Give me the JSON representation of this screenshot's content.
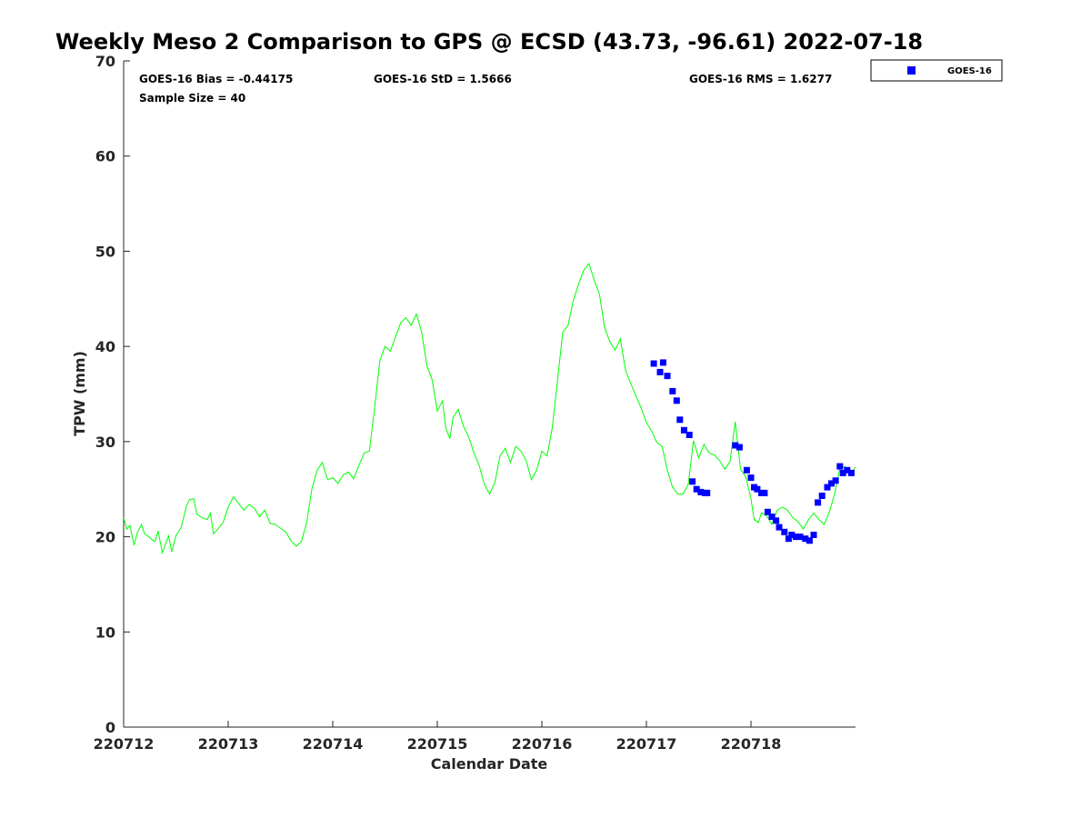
{
  "chart_data": {
    "type": "line",
    "title": "Weekly Meso 2 Comparison to GPS @ ECSD (43.73, -96.61) 2022-07-18",
    "xlabel": "Calendar Date",
    "ylabel": "TPW (mm)",
    "xlim": [
      0,
      7
    ],
    "ylim": [
      0,
      70
    ],
    "x_ticks": [
      0,
      1,
      2,
      3,
      4,
      5,
      6
    ],
    "x_tick_labels": [
      "220712",
      "220713",
      "220714",
      "220715",
      "220716",
      "220717",
      "220718"
    ],
    "y_ticks": [
      0,
      10,
      20,
      30,
      40,
      50,
      60,
      70
    ],
    "y_tick_labels": [
      "0",
      "10",
      "20",
      "30",
      "40",
      "50",
      "60",
      "70"
    ],
    "grid": false,
    "legend_position": "top-right (outside axes)",
    "stats": {
      "bias": "GOES-16 Bias = -0.44175",
      "std": "GOES-16 StD = 1.5666",
      "rms": "GOES-16 RMS = 1.6277",
      "sample": "Sample Size = 40"
    },
    "legend": [
      {
        "label": "GOES-16",
        "marker": "square",
        "color": "#0000ff"
      }
    ],
    "colors": {
      "gps_line": "#00ff00",
      "goes_marker": "#0000ff",
      "axes": "#262626"
    },
    "series": [
      {
        "kind": "line",
        "x": [
          0.0,
          0.03,
          0.06,
          0.1,
          0.13,
          0.17,
          0.2,
          0.23,
          0.27,
          0.3,
          0.33,
          0.37,
          0.4,
          0.43,
          0.46,
          0.5,
          0.55,
          0.6,
          0.63,
          0.67,
          0.7,
          0.75,
          0.8,
          0.83,
          0.86,
          0.9,
          0.95,
          1.0,
          1.05,
          1.1,
          1.15,
          1.2,
          1.25,
          1.3,
          1.35,
          1.4,
          1.45,
          1.5,
          1.55,
          1.6,
          1.65,
          1.7,
          1.75,
          1.8,
          1.85,
          1.9,
          1.95,
          2.0,
          2.05,
          2.1,
          2.15,
          2.2,
          2.25,
          2.3,
          2.35,
          2.4,
          2.45,
          2.5,
          2.55,
          2.6,
          2.65,
          2.7,
          2.75,
          2.8,
          2.85,
          2.9,
          2.95,
          3.0,
          3.05,
          3.08,
          3.12,
          3.15,
          3.2,
          3.25,
          3.3,
          3.35,
          3.4,
          3.45,
          3.5,
          3.55,
          3.6,
          3.65,
          3.7,
          3.75,
          3.8,
          3.85,
          3.9,
          3.95,
          4.0,
          4.05,
          4.1,
          4.15,
          4.2,
          4.25,
          4.3,
          4.35,
          4.4,
          4.45,
          4.5,
          4.55,
          4.6,
          4.65,
          4.7,
          4.75,
          4.8,
          4.85,
          4.9,
          4.95,
          5.0,
          5.05,
          5.1,
          5.15,
          5.2,
          5.25,
          5.3,
          5.35,
          5.4,
          5.45,
          5.5,
          5.55,
          5.6,
          5.65,
          5.7,
          5.75,
          5.8,
          5.85,
          5.9,
          5.95,
          6.0,
          6.03,
          6.07,
          6.1,
          6.15,
          6.2,
          6.25,
          6.3,
          6.35,
          6.4,
          6.45,
          6.5,
          6.55,
          6.6,
          6.65,
          6.7,
          6.75,
          6.8,
          6.85,
          6.9,
          6.95,
          7.0
        ],
        "y": [
          22.0,
          20.8,
          21.2,
          19.1,
          20.4,
          21.3,
          20.3,
          20.1,
          19.7,
          19.5,
          20.6,
          18.3,
          19.2,
          20.1,
          18.4,
          20.1,
          21.0,
          23.2,
          23.9,
          24.0,
          22.4,
          22.0,
          21.8,
          22.5,
          20.3,
          20.8,
          21.5,
          23.1,
          24.2,
          23.5,
          22.8,
          23.4,
          23.0,
          22.1,
          22.8,
          21.4,
          21.3,
          20.9,
          20.5,
          19.6,
          19.0,
          19.5,
          21.5,
          25.0,
          27.0,
          27.8,
          26.0,
          26.2,
          25.6,
          26.5,
          26.8,
          26.1,
          27.5,
          28.8,
          29.0,
          33.5,
          38.5,
          40.0,
          39.5,
          41.0,
          42.5,
          43.0,
          42.2,
          43.4,
          41.5,
          38.0,
          36.5,
          33.2,
          34.3,
          31.5,
          30.3,
          32.5,
          33.4,
          31.6,
          30.5,
          28.8,
          27.5,
          25.5,
          24.5,
          25.7,
          28.5,
          29.3,
          27.8,
          29.5,
          29.0,
          28.0,
          26.0,
          27.0,
          29.0,
          28.5,
          31.5,
          36.5,
          41.5,
          42.2,
          44.8,
          46.5,
          48.0,
          48.7,
          47.0,
          45.5,
          42.0,
          40.5,
          39.6,
          40.8,
          37.5,
          36.1,
          34.8,
          33.5,
          32.0,
          31.1,
          29.9,
          29.5,
          27.0,
          25.2,
          24.5,
          24.5,
          25.5,
          30.1,
          28.3,
          29.7,
          28.8,
          28.6,
          28.0,
          27.1,
          27.9,
          32.1,
          27.1,
          26.3,
          24.0,
          21.8,
          21.5,
          22.5,
          22.2,
          21.3,
          22.8,
          23.1,
          22.8,
          22.0,
          21.6,
          20.8,
          21.8,
          22.5,
          21.8,
          21.3,
          22.6,
          24.5,
          27.2,
          27.4,
          26.6,
          27.3
        ]
      },
      {
        "name": "GOES-16",
        "kind": "marker",
        "x": [
          5.07,
          5.13,
          5.16,
          5.2,
          5.25,
          5.29,
          5.32,
          5.36,
          5.41,
          5.44,
          5.48,
          5.52,
          5.56,
          5.58,
          5.85,
          5.89,
          5.96,
          6.0,
          6.03,
          6.06,
          6.1,
          6.13,
          6.16,
          6.2,
          6.24,
          6.27,
          6.32,
          6.36,
          6.39,
          6.43,
          6.47,
          6.52,
          6.56,
          6.6,
          6.64,
          6.68,
          6.73,
          6.77,
          6.81,
          6.85,
          6.88,
          6.92,
          6.96
        ],
        "y": [
          38.2,
          37.3,
          38.3,
          36.9,
          35.3,
          34.3,
          32.3,
          31.2,
          30.7,
          25.8,
          25.0,
          24.7,
          24.6,
          24.6,
          29.6,
          29.4,
          27.0,
          26.2,
          25.2,
          25.0,
          24.6,
          24.6,
          22.6,
          22.1,
          21.7,
          21.0,
          20.5,
          19.8,
          20.2,
          20.0,
          20.0,
          19.8,
          19.6,
          20.2,
          23.6,
          24.3,
          25.2,
          25.6,
          25.9,
          27.4,
          26.7,
          27.0,
          26.7
        ]
      }
    ]
  }
}
